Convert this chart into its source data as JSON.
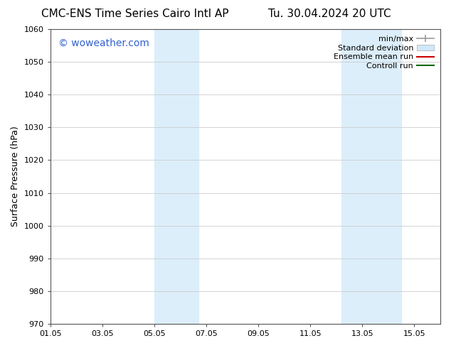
{
  "title_left": "CMC-ENS Time Series Cairo Intl AP",
  "title_right": "Tu. 30.04.2024 20 UTC",
  "ylabel": "Surface Pressure (hPa)",
  "ylim": [
    970,
    1060
  ],
  "yticks": [
    970,
    980,
    990,
    1000,
    1010,
    1020,
    1030,
    1040,
    1050,
    1060
  ],
  "xtick_labels": [
    "01.05",
    "03.05",
    "05.05",
    "07.05",
    "09.05",
    "11.05",
    "13.05",
    "15.05"
  ],
  "xtick_positions": [
    0,
    2,
    4,
    6,
    8,
    10,
    12,
    14
  ],
  "xlim": [
    0,
    15
  ],
  "shaded_bands": [
    {
      "x_start": 4.0,
      "x_end": 5.7,
      "color": "#dceefa"
    },
    {
      "x_start": 11.2,
      "x_end": 12.8,
      "color": "#dceefa"
    },
    {
      "x_start": 12.8,
      "x_end": 13.5,
      "color": "#dceefa"
    }
  ],
  "watermark_text": "© woweather.com",
  "watermark_color": "#3060d0",
  "watermark_fontsize": 10,
  "background_color": "#ffffff",
  "grid_color": "#cccccc",
  "legend_items": [
    {
      "label": "min/max",
      "color": "#999999",
      "style": "errbar"
    },
    {
      "label": "Standard deviation",
      "color": "#d0e8f8",
      "style": "rect"
    },
    {
      "label": "Ensemble mean run",
      "color": "#cc0000",
      "style": "line"
    },
    {
      "label": "Controll run",
      "color": "#006600",
      "style": "line"
    }
  ],
  "title_fontsize": 11,
  "tick_fontsize": 8,
  "legend_fontsize": 8,
  "axis_label_fontsize": 9
}
